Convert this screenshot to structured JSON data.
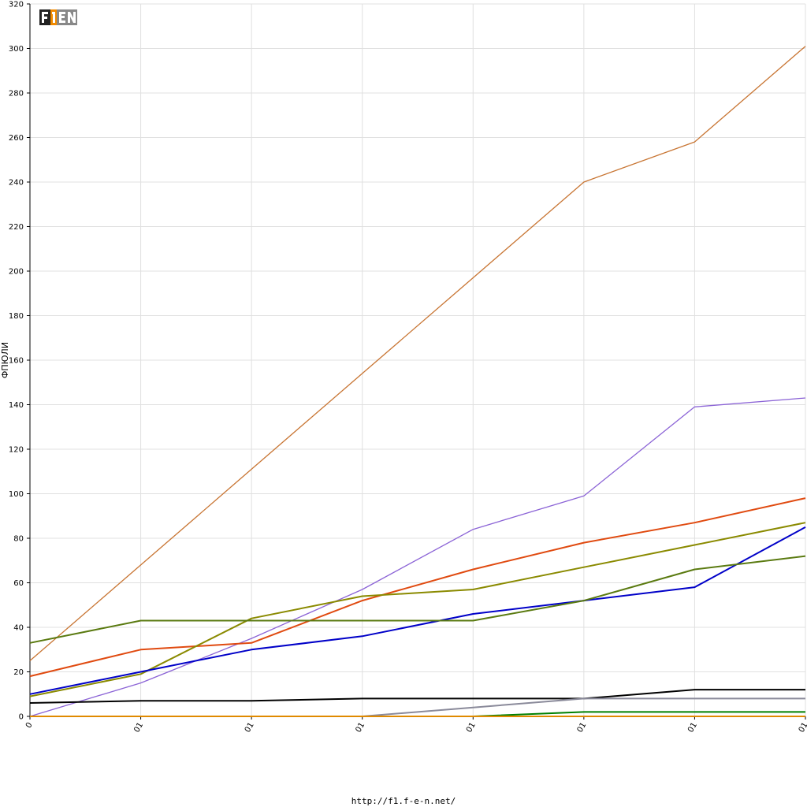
{
  "chart_data": {
    "type": "line",
    "title": "",
    "xlabel": "",
    "ylabel": "ФПЮЛИ",
    "ylim": [
      0,
      320
    ],
    "yticks": [
      0,
      20,
      40,
      60,
      80,
      100,
      120,
      140,
      160,
      180,
      200,
      220,
      240,
      260,
      280,
      300,
      320
    ],
    "grid": true,
    "legend": "none",
    "categories": [
      "0",
      "01",
      "01",
      "01",
      "01",
      "01",
      "01",
      "01"
    ],
    "series": [
      {
        "color": "#c87533",
        "values": [
          25,
          68,
          111,
          154,
          197,
          240,
          258,
          301
        ]
      },
      {
        "color": "#8b63d6",
        "values": [
          0,
          15,
          35,
          57,
          84,
          99,
          139,
          143
        ]
      },
      {
        "color": "#e04a10",
        "values": [
          18,
          30,
          33,
          52,
          66,
          78,
          87,
          98
        ]
      },
      {
        "color": "#8a8a00",
        "values": [
          9,
          19,
          44,
          54,
          57,
          67,
          77,
          87
        ]
      },
      {
        "color": "#0000c8",
        "values": [
          10,
          20,
          30,
          36,
          46,
          52,
          58,
          85
        ]
      },
      {
        "color": "#5a7a10",
        "values": [
          33,
          43,
          43,
          43,
          43,
          52,
          66,
          72
        ]
      },
      {
        "color": "#000000",
        "values": [
          6,
          7,
          7,
          8,
          8,
          8,
          12,
          12
        ]
      },
      {
        "color": "#8a8a9a",
        "values": [
          0,
          0,
          0,
          0,
          4,
          8,
          8,
          8
        ]
      },
      {
        "color": "#008000",
        "values": [
          0,
          0,
          0,
          0,
          0,
          2,
          2,
          2
        ]
      },
      {
        "color": "#e08a00",
        "values": [
          0,
          0,
          0,
          0,
          0,
          0,
          0,
          0
        ]
      }
    ]
  },
  "logo": {
    "text": "F1EN"
  },
  "footer": {
    "url": "http://f1.f-e-n.net/"
  }
}
